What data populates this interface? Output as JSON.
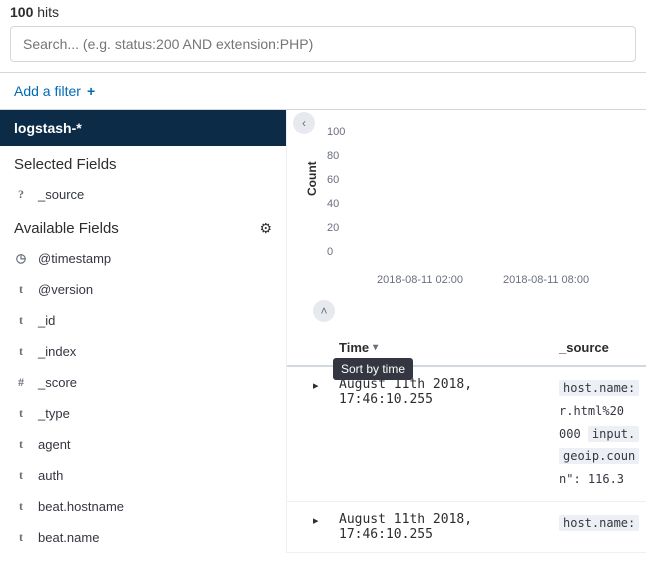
{
  "hits": {
    "count": "100",
    "label": "hits"
  },
  "search": {
    "placeholder": "Search... (e.g. status:200 AND extension:PHP)"
  },
  "filter_bar": {
    "add_label": "Add a filter",
    "plus": "+"
  },
  "sidebar": {
    "index_pattern": "logstash-*",
    "selected_title": "Selected Fields",
    "available_title": "Available Fields",
    "selected_fields": [
      {
        "type": "?",
        "name": "_source"
      }
    ],
    "available_fields": [
      {
        "type": "clock",
        "name": "@timestamp"
      },
      {
        "type": "t",
        "name": "@version"
      },
      {
        "type": "t",
        "name": "_id"
      },
      {
        "type": "t",
        "name": "_index"
      },
      {
        "type": "#",
        "name": "_score"
      },
      {
        "type": "t",
        "name": "_type"
      },
      {
        "type": "t",
        "name": "agent"
      },
      {
        "type": "t",
        "name": "auth"
      },
      {
        "type": "t",
        "name": "beat.hostname"
      },
      {
        "type": "t",
        "name": "beat.name"
      }
    ]
  },
  "chart": {
    "ylabel": "Count",
    "yticks": [
      "100",
      "80",
      "60",
      "40",
      "20",
      "0"
    ],
    "xticks": [
      "2018-08-11 02:00",
      "2018-08-11 08:00"
    ],
    "ylim": [
      0,
      100
    ],
    "tick_color": "#69707d",
    "background": "#ffffff"
  },
  "table": {
    "col_time": "Time",
    "col_source": "_source",
    "sort_tooltip": "Sort by time",
    "rows": [
      {
        "time": "August 11th 2018, 17:46:10.255",
        "source_lines": [
          {
            "pre": "",
            "bg": "host.name:"
          },
          {
            "pre": "r.html%20",
            "bg": ""
          },
          {
            "pre": "000 ",
            "bg": "input."
          },
          {
            "pre": "",
            "bg": "geoip.coun"
          },
          {
            "pre": "n\": 116.3",
            "bg": ""
          }
        ]
      },
      {
        "time": "August 11th 2018, 17:46:10.255",
        "source_lines": [
          {
            "pre": "",
            "bg": "host.name:"
          }
        ]
      }
    ]
  },
  "icons": {
    "caret_left": "‹",
    "caret_up": "˄",
    "caret_down": "▾",
    "caret_right": "▸",
    "gear": "⚙"
  },
  "colors": {
    "link": "#006bb4",
    "header_bg": "#0b2b46",
    "border": "#d3d8de",
    "muted": "#69707d"
  }
}
